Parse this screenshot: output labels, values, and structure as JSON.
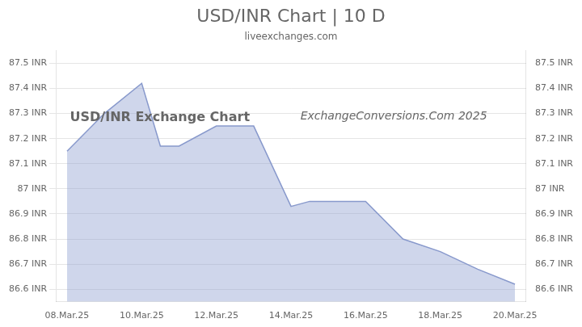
{
  "chart_data": {
    "type": "area",
    "title": "USD/INR Chart | 10 D",
    "subtitle": "liveexchanges.com",
    "annotations": [
      "USD/INR Exchange Chart",
      "ExchangeConversions.Com 2025"
    ],
    "x": [
      0,
      1,
      2,
      2.5,
      3.0,
      4.0,
      5.0,
      6.0,
      6.5,
      7.0,
      8.0,
      9.0,
      10.0,
      11.0,
      12.0
    ],
    "values": [
      87.15,
      87.3,
      87.42,
      87.17,
      87.17,
      87.25,
      87.25,
      86.93,
      86.95,
      86.95,
      86.95,
      86.8,
      86.75,
      86.68,
      86.62
    ],
    "color": "#8899cc",
    "xlim": [
      -0.3,
      12.3
    ],
    "xticks": [
      {
        "value": 0,
        "label": "08.Mar.25"
      },
      {
        "value": 2,
        "label": "10.Mar.25"
      },
      {
        "value": 4,
        "label": "12.Mar.25"
      },
      {
        "value": 6,
        "label": "14.Mar.25"
      },
      {
        "value": 8,
        "label": "16.Mar.25"
      },
      {
        "value": 10,
        "label": "18.Mar.25"
      },
      {
        "value": 12,
        "label": "20.Mar.25"
      }
    ],
    "ylim": [
      86.55,
      87.55
    ],
    "yticks": [
      {
        "value": 86.6,
        "label": "86.6 INR"
      },
      {
        "value": 86.7,
        "label": "86.7 INR"
      },
      {
        "value": 86.8,
        "label": "86.8 INR"
      },
      {
        "value": 86.9,
        "label": "86.9 INR"
      },
      {
        "value": 87.0,
        "label": "87 INR"
      },
      {
        "value": 87.1,
        "label": "87.1 INR"
      },
      {
        "value": 87.2,
        "label": "87.2 INR"
      },
      {
        "value": 87.3,
        "label": "87.3 INR"
      },
      {
        "value": 87.4,
        "label": "87.4 INR"
      },
      {
        "value": 87.5,
        "label": "87.5 INR"
      }
    ],
    "y2lim": [
      86.55,
      87.55
    ],
    "y2ticks": [
      {
        "value": 86.6,
        "label": "86.6 INR"
      },
      {
        "value": 86.7,
        "label": "86.7 INR"
      },
      {
        "value": 86.8,
        "label": "86.8 INR"
      },
      {
        "value": 86.9,
        "label": "86.9 INR"
      },
      {
        "value": 87.0,
        "label": "87 INR"
      },
      {
        "value": 87.1,
        "label": "87.1 INR"
      },
      {
        "value": 87.2,
        "label": "87.2 INR"
      },
      {
        "value": 87.3,
        "label": "87.3 INR"
      },
      {
        "value": 87.4,
        "label": "87.4 INR"
      },
      {
        "value": 87.5,
        "label": "87.5 INR"
      }
    ],
    "grid": true
  }
}
